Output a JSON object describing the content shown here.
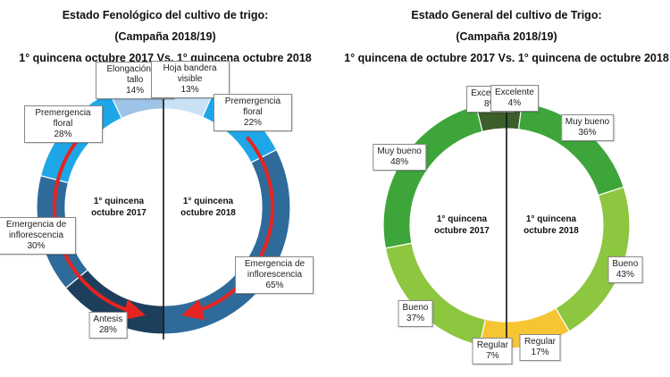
{
  "chart_data": [
    {
      "type": "donut",
      "title": "Estado Fenológico del cultivo de trigo:",
      "subtitle": "(Campaña 2018/19)",
      "period": "1° quincena octubre 2017 Vs. 1° quincena octubre 2018",
      "series": [
        {
          "name": "1° quincena octubre 2017",
          "categories": [
            "Elongación de tallo",
            "Premergencia floral",
            "Emergencia de inflorescencia",
            "Antesis"
          ],
          "values": [
            14,
            28,
            30,
            28
          ],
          "value_labels": [
            "14%",
            "28%",
            "30%",
            "28%"
          ],
          "colors": [
            "#9dc3e6",
            "#1ea7e8",
            "#2f6b9a",
            "#1d3f5c"
          ]
        },
        {
          "name": "1° quincena octubre 2018",
          "categories": [
            "Hoja bandera visible",
            "Premergencia floral",
            "Emergencia de inflorescencia"
          ],
          "values": [
            13,
            22,
            65
          ],
          "value_labels": [
            "13%",
            "22%",
            "65%"
          ],
          "colors": [
            "#c9e1f4",
            "#1ea7e8",
            "#2f6b9a"
          ]
        }
      ]
    },
    {
      "type": "donut",
      "title": "Estado General del cultivo de Trigo:",
      "subtitle": "(Campaña 2018/19)",
      "period": "1° quincena de octubre 2017 Vs. 1° quincena de octubre 2018",
      "series": [
        {
          "name": "1° quincena octubre 2017",
          "categories": [
            "Excelente",
            "Muy bueno",
            "Bueno",
            "Regular"
          ],
          "values": [
            8,
            48,
            37,
            7
          ],
          "value_labels": [
            "8%",
            "48%",
            "37%",
            "7%"
          ],
          "colors": [
            "#3b5e2b",
            "#3da53a",
            "#8dc63f",
            "#f6c533"
          ]
        },
        {
          "name": "1° quincena octubre 2018",
          "categories": [
            "Excelente",
            "Muy bueno",
            "Bueno",
            "Regular"
          ],
          "values": [
            4,
            36,
            43,
            17
          ],
          "value_labels": [
            "4%",
            "36%",
            "43%",
            "17%"
          ],
          "colors": [
            "#3b5e2b",
            "#3da53a",
            "#8dc63f",
            "#f6c533"
          ]
        }
      ]
    }
  ]
}
